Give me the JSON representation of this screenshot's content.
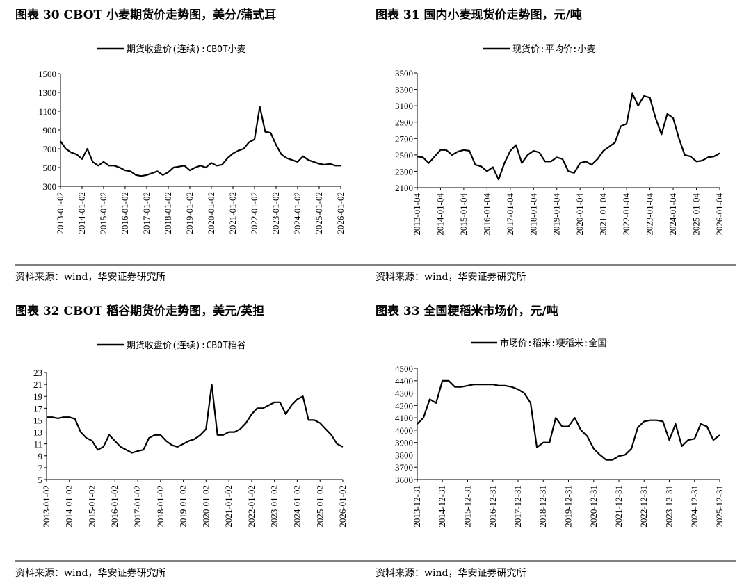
{
  "chart_data": [
    {
      "type": "line",
      "title": "图表 30 CBOT 小麦期货价走势图，美分/蒲式耳",
      "source": "资料来源：wind，华安证券研究所",
      "x": [
        "2013-01-02",
        "2013-04-02",
        "2013-07-02",
        "2013-10-02",
        "2014-01-02",
        "2014-04-02",
        "2014-07-02",
        "2014-10-02",
        "2015-01-02",
        "2015-04-02",
        "2015-07-02",
        "2015-10-02",
        "2016-01-02",
        "2016-04-02",
        "2016-07-02",
        "2016-10-02",
        "2017-01-02",
        "2017-04-02",
        "2017-07-02",
        "2017-10-02",
        "2018-01-02",
        "2018-04-02",
        "2018-07-02",
        "2018-10-02",
        "2019-01-02",
        "2019-04-02",
        "2019-07-02",
        "2019-10-02",
        "2020-01-02",
        "2020-04-02",
        "2020-07-02",
        "2020-10-02",
        "2021-01-02",
        "2021-04-02",
        "2021-07-02",
        "2021-10-02",
        "2022-01-02",
        "2022-04-02",
        "2022-07-02",
        "2022-10-02",
        "2023-01-02",
        "2023-04-02",
        "2023-07-02",
        "2023-10-02",
        "2024-01-02",
        "2024-04-02",
        "2024-07-02",
        "2024-10-02",
        "2025-01-02",
        "2025-04-02",
        "2025-07-02",
        "2025-10-02",
        "2026-01-02"
      ],
      "series": [
        {
          "name": "期货收盘价(连续):CBOT小麦",
          "color": "#000000",
          "values": [
            780,
            700,
            660,
            640,
            590,
            700,
            560,
            520,
            560,
            520,
            520,
            500,
            470,
            460,
            420,
            410,
            420,
            440,
            460,
            420,
            450,
            500,
            510,
            520,
            470,
            500,
            520,
            500,
            550,
            520,
            530,
            600,
            650,
            680,
            700,
            770,
            800,
            1150,
            880,
            870,
            740,
            640,
            600,
            580,
            560,
            620,
            580,
            560,
            540,
            530,
            540,
            520,
            520
          ]
        }
      ],
      "xlim": [
        "2013-01-02",
        "2026-01-02"
      ],
      "xticks": [
        "2013-01-02",
        "2014-01-02",
        "2015-01-02",
        "2016-01-02",
        "2017-01-02",
        "2018-01-02",
        "2019-01-02",
        "2020-01-02",
        "2021-01-02",
        "2022-01-02",
        "2023-01-02",
        "2024-01-02",
        "2025-01-02",
        "2026-01-02"
      ],
      "ylim": [
        300,
        1500
      ],
      "yticks": [
        300,
        500,
        700,
        900,
        1100,
        1300,
        1500
      ]
    },
    {
      "type": "line",
      "title": "图表 31 国内小麦现货价走势图，元/吨",
      "source": "资料来源：wind，华安证券研究所",
      "x": [
        "2013-01-04",
        "2013-04-04",
        "2013-07-04",
        "2013-10-04",
        "2014-01-04",
        "2014-04-04",
        "2014-07-04",
        "2014-10-04",
        "2015-01-04",
        "2015-04-04",
        "2015-07-04",
        "2015-10-04",
        "2016-01-04",
        "2016-04-04",
        "2016-07-04",
        "2016-10-04",
        "2017-01-04",
        "2017-04-04",
        "2017-07-04",
        "2017-10-04",
        "2018-01-04",
        "2018-04-04",
        "2018-07-04",
        "2018-10-04",
        "2019-01-04",
        "2019-04-04",
        "2019-07-04",
        "2019-10-04",
        "2020-01-04",
        "2020-04-04",
        "2020-07-04",
        "2020-10-04",
        "2021-01-04",
        "2021-04-04",
        "2021-07-04",
        "2021-10-04",
        "2022-01-04",
        "2022-04-04",
        "2022-07-04",
        "2022-10-04",
        "2023-01-04",
        "2023-04-04",
        "2023-07-04",
        "2023-10-04",
        "2024-01-04",
        "2024-04-04",
        "2024-07-04",
        "2024-10-04",
        "2025-01-04",
        "2025-04-04",
        "2025-07-04",
        "2025-10-04",
        "2026-01-04"
      ],
      "series": [
        {
          "name": "现货价:平均价:小麦",
          "color": "#000000",
          "values": [
            2480,
            2470,
            2400,
            2480,
            2560,
            2560,
            2500,
            2540,
            2560,
            2550,
            2380,
            2360,
            2300,
            2350,
            2200,
            2400,
            2550,
            2620,
            2400,
            2500,
            2550,
            2530,
            2420,
            2420,
            2470,
            2450,
            2300,
            2280,
            2400,
            2420,
            2380,
            2450,
            2550,
            2600,
            2650,
            2850,
            2880,
            3250,
            3100,
            3220,
            3200,
            2950,
            2750,
            3000,
            2950,
            2700,
            2500,
            2480,
            2420,
            2430,
            2470,
            2480,
            2520
          ]
        }
      ],
      "xlim": [
        "2013-01-04",
        "2026-01-04"
      ],
      "xticks": [
        "2013-01-04",
        "2014-01-04",
        "2015-01-04",
        "2016-01-04",
        "2017-01-04",
        "2018-01-04",
        "2019-01-04",
        "2020-01-04",
        "2021-01-04",
        "2022-01-04",
        "2023-01-04",
        "2024-01-04",
        "2025-01-04",
        "2026-01-04"
      ],
      "ylim": [
        2100,
        3500
      ],
      "yticks": [
        2100,
        2300,
        2500,
        2700,
        2900,
        3100,
        3300,
        3500
      ]
    },
    {
      "type": "line",
      "title": "图表 32 CBOT 稻谷期货价走势图，美元/英担",
      "source": "资料来源：wind，华安证券研究所",
      "x": [
        "2013-01-02",
        "2013-04-02",
        "2013-07-02",
        "2013-10-02",
        "2014-01-02",
        "2014-04-02",
        "2014-07-02",
        "2014-10-02",
        "2015-01-02",
        "2015-04-02",
        "2015-07-02",
        "2015-10-02",
        "2016-01-02",
        "2016-04-02",
        "2016-07-02",
        "2016-10-02",
        "2017-01-02",
        "2017-04-02",
        "2017-07-02",
        "2017-10-02",
        "2018-01-02",
        "2018-04-02",
        "2018-07-02",
        "2018-10-02",
        "2019-01-02",
        "2019-04-02",
        "2019-07-02",
        "2019-10-02",
        "2020-01-02",
        "2020-04-02",
        "2020-07-02",
        "2020-10-02",
        "2021-01-02",
        "2021-04-02",
        "2021-07-02",
        "2021-10-02",
        "2022-01-02",
        "2022-04-02",
        "2022-07-02",
        "2022-10-02",
        "2023-01-02",
        "2023-04-02",
        "2023-07-02",
        "2023-10-02",
        "2024-01-02",
        "2024-04-02",
        "2024-07-02",
        "2024-10-02",
        "2025-01-02",
        "2025-04-02",
        "2025-07-02",
        "2025-10-02",
        "2026-01-02"
      ],
      "series": [
        {
          "name": "期货收盘价(连续):CBOT稻谷",
          "color": "#000000",
          "values": [
            15.5,
            15.5,
            15.3,
            15.5,
            15.5,
            15.2,
            13,
            12,
            11.5,
            10,
            10.5,
            12.5,
            11.5,
            10.5,
            10,
            9.5,
            9.8,
            10,
            12,
            12.5,
            12.5,
            11.5,
            10.8,
            10.5,
            11,
            11.5,
            11.8,
            12.5,
            13.5,
            21,
            12.5,
            12.5,
            13,
            13,
            13.5,
            14.5,
            16,
            17,
            17,
            17.5,
            18,
            18,
            16,
            17.5,
            18.5,
            19,
            15,
            15,
            14.5,
            13.5,
            12.5,
            11,
            10.5
          ]
        }
      ],
      "xlim": [
        "2013-01-02",
        "2026-01-02"
      ],
      "xticks": [
        "2013-01-02",
        "2014-01-02",
        "2015-01-02",
        "2016-01-02",
        "2017-01-02",
        "2018-01-02",
        "2019-01-02",
        "2020-01-02",
        "2021-01-02",
        "2022-01-02",
        "2023-01-02",
        "2024-01-02",
        "2025-01-02",
        "2026-01-02"
      ],
      "ylim": [
        5,
        23
      ],
      "yticks": [
        5,
        7,
        9,
        11,
        13,
        15,
        17,
        19,
        21,
        23
      ]
    },
    {
      "type": "line",
      "title": "图表 33 全国粳稻米市场价，元/吨",
      "source": "资料来源：wind，华安证券研究所",
      "x": [
        "2013-12-31",
        "2014-03-31",
        "2014-06-30",
        "2014-09-30",
        "2014-12-31",
        "2015-03-31",
        "2015-06-30",
        "2015-09-30",
        "2015-12-31",
        "2016-03-31",
        "2016-06-30",
        "2016-09-30",
        "2016-12-31",
        "2017-03-31",
        "2017-06-30",
        "2017-09-30",
        "2017-12-31",
        "2018-03-31",
        "2018-06-30",
        "2018-09-30",
        "2018-12-31",
        "2019-03-31",
        "2019-06-30",
        "2019-09-30",
        "2019-12-31",
        "2020-03-31",
        "2020-06-30",
        "2020-09-30",
        "2020-12-31",
        "2021-03-31",
        "2021-06-30",
        "2021-09-30",
        "2021-12-31",
        "2022-03-31",
        "2022-06-30",
        "2022-09-30",
        "2022-12-31",
        "2023-03-31",
        "2023-06-30",
        "2023-09-30",
        "2023-12-31",
        "2024-03-31",
        "2024-06-30",
        "2024-09-30",
        "2024-12-31",
        "2025-03-31",
        "2025-06-30",
        "2025-09-30",
        "2025-12-31"
      ],
      "series": [
        {
          "name": "市场价:稻米:粳稻米:全国",
          "color": "#000000",
          "values": [
            4050,
            4100,
            4250,
            4220,
            4400,
            4400,
            4350,
            4350,
            4360,
            4370,
            4370,
            4370,
            4370,
            4360,
            4360,
            4350,
            4330,
            4300,
            4220,
            3860,
            3900,
            3900,
            4100,
            4030,
            4030,
            4100,
            4000,
            3950,
            3850,
            3800,
            3760,
            3760,
            3790,
            3800,
            3850,
            4020,
            4070,
            4080,
            4080,
            4070,
            3920,
            4050,
            3870,
            3920,
            3930,
            4050,
            4030,
            3920,
            3960
          ]
        }
      ],
      "xlim": [
        "2013-12-31",
        "2025-12-31"
      ],
      "xticks": [
        "2013-12-31",
        "2014-12-31",
        "2015-12-31",
        "2016-12-31",
        "2017-12-31",
        "2018-12-31",
        "2019-12-31",
        "2020-12-31",
        "2021-12-31",
        "2022-12-31",
        "2023-12-31",
        "2024-12-31",
        "2025-12-31"
      ],
      "ylim": [
        3600,
        4500
      ],
      "yticks": [
        3600,
        3700,
        3800,
        3900,
        4000,
        4100,
        4200,
        4300,
        4400,
        4500
      ]
    }
  ]
}
